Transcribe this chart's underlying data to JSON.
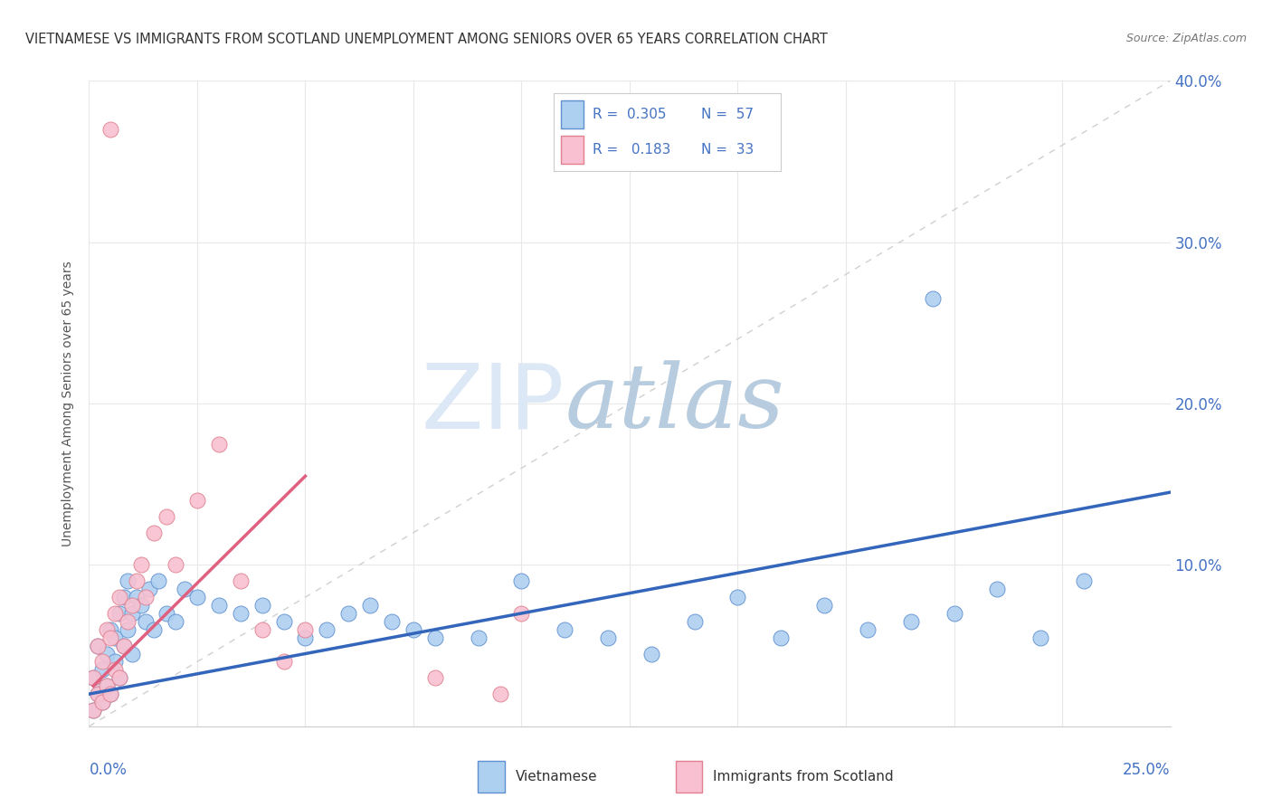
{
  "title": "VIETNAMESE VS IMMIGRANTS FROM SCOTLAND UNEMPLOYMENT AMONG SENIORS OVER 65 YEARS CORRELATION CHART",
  "source": "Source: ZipAtlas.com",
  "ylabel": "Unemployment Among Seniors over 65 years",
  "xlim": [
    0,
    0.25
  ],
  "ylim": [
    0,
    0.4
  ],
  "series1_name": "Vietnamese",
  "series1_color": "#aed0f0",
  "series1_edge_color": "#6090d0",
  "series1_line_color": "#3366bb",
  "series1_R": 0.305,
  "series1_N": 57,
  "series2_name": "Immigrants from Scotland",
  "series2_color": "#f8c0d0",
  "series2_edge_color": "#e08090",
  "series2_line_color": "#e06080",
  "series2_R": 0.183,
  "series2_N": 33,
  "legend_text_color": "#4472c4",
  "watermark_zip": "ZIP",
  "watermark_atlas": "atlas",
  "watermark_color_zip": "#d8e8f8",
  "watermark_color_atlas": "#b8cce8",
  "background_color": "#ffffff",
  "ref_line_color": "#d0d0d0",
  "grid_color": "#e8e8e8",
  "vietnamese_x": [
    0.001,
    0.001,
    0.002,
    0.002,
    0.003,
    0.003,
    0.004,
    0.004,
    0.005,
    0.005,
    0.006,
    0.006,
    0.007,
    0.007,
    0.008,
    0.008,
    0.009,
    0.009,
    0.01,
    0.01,
    0.011,
    0.012,
    0.013,
    0.014,
    0.015,
    0.016,
    0.018,
    0.02,
    0.022,
    0.025,
    0.03,
    0.035,
    0.04,
    0.045,
    0.05,
    0.055,
    0.06,
    0.065,
    0.07,
    0.075,
    0.08,
    0.09,
    0.1,
    0.11,
    0.12,
    0.13,
    0.14,
    0.15,
    0.16,
    0.17,
    0.18,
    0.19,
    0.2,
    0.21,
    0.22,
    0.23,
    0.195
  ],
  "vietnamese_y": [
    0.01,
    0.03,
    0.02,
    0.05,
    0.015,
    0.035,
    0.025,
    0.045,
    0.02,
    0.06,
    0.04,
    0.055,
    0.03,
    0.07,
    0.05,
    0.08,
    0.06,
    0.09,
    0.045,
    0.07,
    0.08,
    0.075,
    0.065,
    0.085,
    0.06,
    0.09,
    0.07,
    0.065,
    0.085,
    0.08,
    0.075,
    0.07,
    0.075,
    0.065,
    0.055,
    0.06,
    0.07,
    0.075,
    0.065,
    0.06,
    0.055,
    0.055,
    0.09,
    0.06,
    0.055,
    0.045,
    0.065,
    0.08,
    0.055,
    0.075,
    0.06,
    0.065,
    0.07,
    0.085,
    0.055,
    0.09,
    0.265
  ],
  "scotland_x": [
    0.001,
    0.001,
    0.002,
    0.002,
    0.003,
    0.003,
    0.004,
    0.004,
    0.005,
    0.005,
    0.006,
    0.006,
    0.007,
    0.007,
    0.008,
    0.009,
    0.01,
    0.011,
    0.012,
    0.013,
    0.015,
    0.018,
    0.02,
    0.025,
    0.03,
    0.035,
    0.04,
    0.045,
    0.05,
    0.08,
    0.095,
    0.1,
    0.005
  ],
  "scotland_y": [
    0.01,
    0.03,
    0.02,
    0.05,
    0.015,
    0.04,
    0.025,
    0.06,
    0.02,
    0.055,
    0.035,
    0.07,
    0.03,
    0.08,
    0.05,
    0.065,
    0.075,
    0.09,
    0.1,
    0.08,
    0.12,
    0.13,
    0.1,
    0.14,
    0.175,
    0.09,
    0.06,
    0.04,
    0.06,
    0.03,
    0.02,
    0.07,
    0.37
  ],
  "blue_line_x": [
    0.0,
    0.25
  ],
  "blue_line_y": [
    0.02,
    0.145
  ],
  "pink_line_x": [
    0.001,
    0.05
  ],
  "pink_line_y": [
    0.025,
    0.155
  ]
}
